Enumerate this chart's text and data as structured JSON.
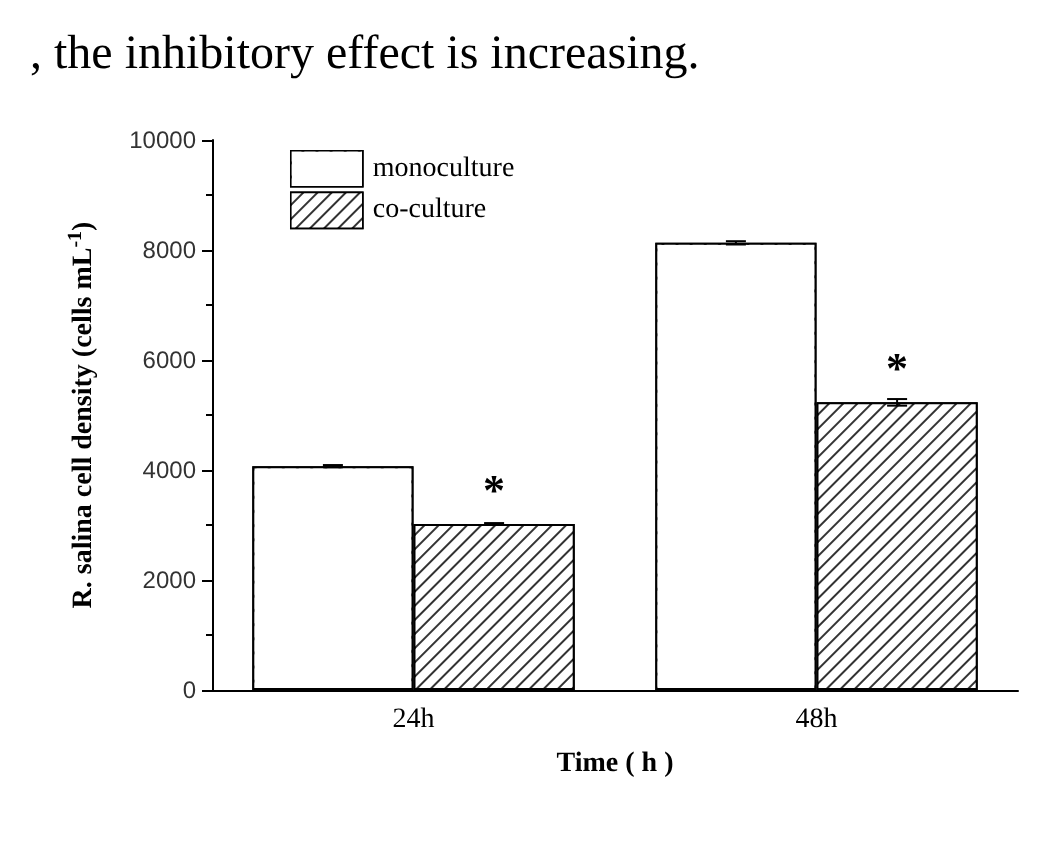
{
  "chart_data": {
    "type": "bar",
    "xlabel": "Time ( h )",
    "ylabel": "R. salina cell density (cells mL$^{-1}$)",
    "categories": [
      "24h",
      "48h"
    ],
    "series": [
      {
        "name": "monoculture",
        "color": "#ffffff",
        "values": [
          4070,
          8130
        ],
        "errors": [
          20,
          30
        ]
      },
      {
        "name": "co-culture",
        "color": "#333333",
        "values": [
          3020,
          5230
        ],
        "errors": [
          15,
          60
        ]
      }
    ],
    "ylim": [
      0,
      10000
    ],
    "yticks": [
      0,
      2000,
      4000,
      6000,
      8000,
      10000
    ],
    "grid": false,
    "legend": "top left",
    "annotations": [
      ", the inhibitory effect is increasing.",
      {
        "text": "*",
        "x": "24h",
        "y": 3020
      },
      {
        "text": "*",
        "x": "48h",
        "y": 5230
      }
    ]
  }
}
